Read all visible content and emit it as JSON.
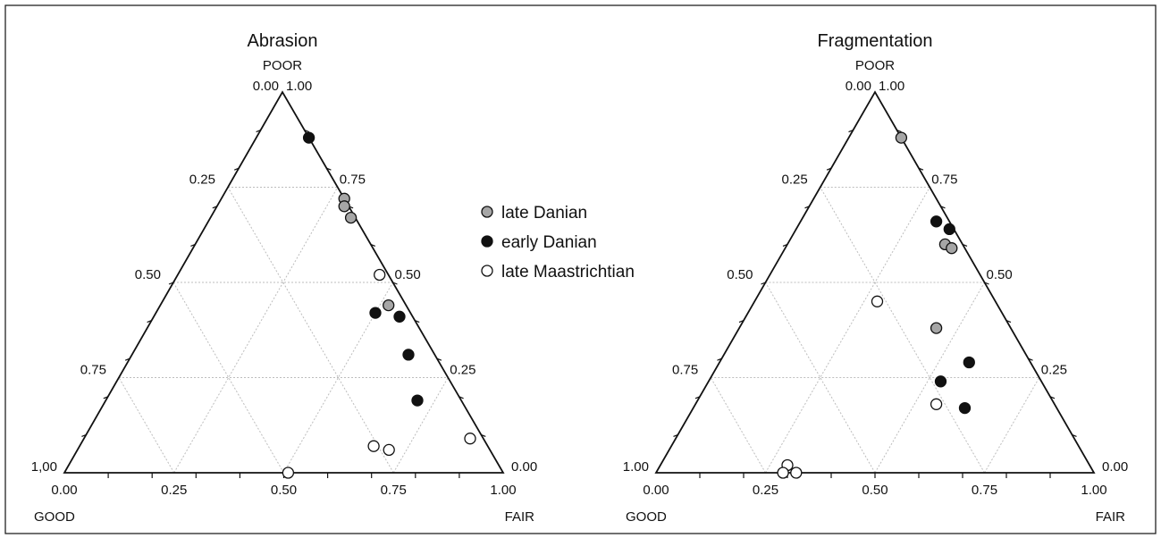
{
  "chart_data": [
    {
      "type": "ternary-scatter",
      "title": "Abrasion",
      "vertices": {
        "top": "POOR",
        "left": "GOOD",
        "right": "FAIR"
      },
      "ticks": [
        "0.00",
        "0.25",
        "0.50",
        "0.75",
        "1.00"
      ],
      "corner_labels": {
        "top_left": "0.00",
        "top_right": "1.00",
        "left": "1,00",
        "bottom_left": "0.00",
        "bottom_right": "1.00",
        "right": "0.00"
      },
      "series": [
        {
          "name": "late Danian",
          "points": [
            {
              "poor": 0.72,
              "fair": 0.28,
              "good": 0.0
            },
            {
              "poor": 0.7,
              "fair": 0.29,
              "good": 0.01
            },
            {
              "poor": 0.67,
              "fair": 0.32,
              "good": 0.01
            },
            {
              "poor": 0.44,
              "fair": 0.52,
              "good": 0.04
            }
          ]
        },
        {
          "name": "early Danian",
          "points": [
            {
              "poor": 0.88,
              "fair": 0.12,
              "good": 0.0
            },
            {
              "poor": 0.41,
              "fair": 0.56,
              "good": 0.03
            },
            {
              "poor": 0.42,
              "fair": 0.5,
              "good": 0.08
            },
            {
              "poor": 0.31,
              "fair": 0.63,
              "good": 0.06
            },
            {
              "poor": 0.19,
              "fair": 0.71,
              "good": 0.1
            }
          ]
        },
        {
          "name": "late Maastrichtian",
          "points": [
            {
              "poor": 0.52,
              "fair": 0.46,
              "good": 0.02
            },
            {
              "poor": 0.09,
              "fair": 0.88,
              "good": 0.03
            },
            {
              "poor": 0.07,
              "fair": 0.67,
              "good": 0.26
            },
            {
              "poor": 0.06,
              "fair": 0.71,
              "good": 0.23
            },
            {
              "poor": 0.0,
              "fair": 0.51,
              "good": 0.49
            }
          ]
        }
      ]
    },
    {
      "type": "ternary-scatter",
      "title": "Fragmentation",
      "vertices": {
        "top": "POOR",
        "left": "GOOD",
        "right": "FAIR"
      },
      "ticks": [
        "0.00",
        "0.25",
        "0.50",
        "0.75",
        "1.00"
      ],
      "corner_labels": {
        "top_left": "0.00",
        "top_right": "1.00",
        "left": "1.00",
        "bottom_left": "0.00",
        "bottom_right": "1.00",
        "right": "0.00"
      },
      "series": [
        {
          "name": "late Danian",
          "points": [
            {
              "poor": 0.88,
              "fair": 0.12,
              "good": 0.0
            },
            {
              "poor": 0.6,
              "fair": 0.36,
              "good": 0.04
            },
            {
              "poor": 0.59,
              "fair": 0.38,
              "good": 0.03
            },
            {
              "poor": 0.38,
              "fair": 0.45,
              "good": 0.17
            }
          ]
        },
        {
          "name": "early Danian",
          "points": [
            {
              "poor": 0.66,
              "fair": 0.31,
              "good": 0.03
            },
            {
              "poor": 0.64,
              "fair": 0.35,
              "good": 0.01
            },
            {
              "poor": 0.29,
              "fair": 0.57,
              "good": 0.14
            },
            {
              "poor": 0.24,
              "fair": 0.53,
              "good": 0.23
            },
            {
              "poor": 0.17,
              "fair": 0.62,
              "good": 0.21
            }
          ]
        },
        {
          "name": "late Maastrichtian",
          "points": [
            {
              "poor": 0.45,
              "fair": 0.28,
              "good": 0.27
            },
            {
              "poor": 0.18,
              "fair": 0.55,
              "good": 0.27
            },
            {
              "poor": 0.02,
              "fair": 0.29,
              "good": 0.69
            },
            {
              "poor": 0.0,
              "fair": 0.29,
              "good": 0.71
            },
            {
              "poor": 0.0,
              "fair": 0.32,
              "good": 0.68
            }
          ]
        }
      ]
    }
  ],
  "legend": {
    "placement": "center",
    "items": [
      {
        "label": "late Danian",
        "fill": "#a6a6a6"
      },
      {
        "label": "early Danian",
        "fill": "#111111"
      },
      {
        "label": "late Maastrichtian",
        "fill": "#ffffff"
      }
    ]
  },
  "colors": {
    "late Danian": "#a6a6a6",
    "early Danian": "#111111",
    "late Maastrichtian": "#ffffff",
    "outline": "#111111",
    "grid": "#bdbdbd"
  }
}
